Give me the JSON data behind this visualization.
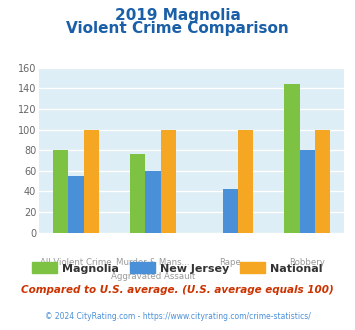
{
  "title_line1": "2019 Magnolia",
  "title_line2": "Violent Crime Comparison",
  "x_labels_top": [
    "",
    "Murder & Mans...",
    "",
    ""
  ],
  "x_labels_bottom": [
    "All Violent Crime",
    "Aggravated Assault",
    "Rape",
    "Robbery"
  ],
  "series": {
    "Magnolia": [
      80,
      76,
      0,
      144
    ],
    "New Jersey": [
      55,
      60,
      42,
      80
    ],
    "National": [
      100,
      100,
      100,
      100
    ]
  },
  "rape_magnolia_zero": true,
  "colors": {
    "Magnolia": "#7dc242",
    "New Jersey": "#4a90d9",
    "National": "#f5a623"
  },
  "ylim": [
    0,
    160
  ],
  "yticks": [
    0,
    20,
    40,
    60,
    80,
    100,
    120,
    140,
    160
  ],
  "plot_bg": "#ddeef6",
  "title_color": "#1a5fa8",
  "footer_note": "Compared to U.S. average. (U.S. average equals 100)",
  "footer_note_color": "#cc3300",
  "copyright": "© 2024 CityRating.com - https://www.cityrating.com/crime-statistics/",
  "copyright_color": "#4a90d9",
  "grid_color": "#ffffff"
}
